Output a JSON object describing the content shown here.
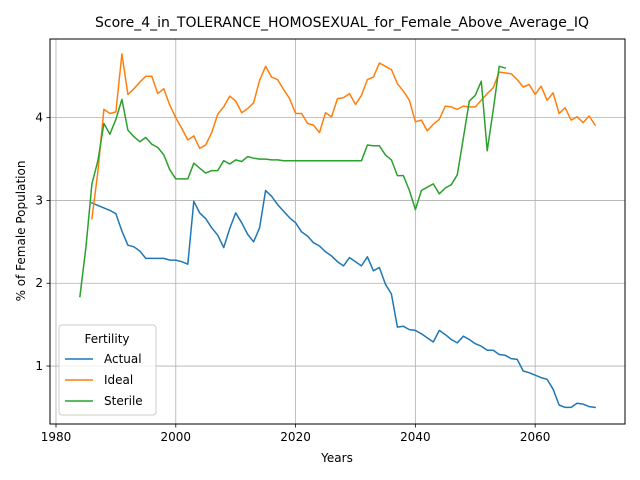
{
  "chart_data": {
    "type": "line",
    "title": "Score_4_in_TOLERANCE_HOMOSEXUAL_for_Female_Above_Average_IQ",
    "xlabel": "Years",
    "ylabel": "% of Female Population",
    "xlim": [
      1979,
      2075
    ],
    "ylim": [
      0.3,
      4.95
    ],
    "xticks": [
      1980,
      2000,
      2020,
      2040,
      2060
    ],
    "yticks": [
      1,
      2,
      3,
      4
    ],
    "grid": true,
    "legend": {
      "title": "Fertility",
      "placement": "lower-left"
    },
    "series": [
      {
        "name": "Actual",
        "color": "#1f77b4",
        "x": [
          1986,
          1987,
          1988,
          1989,
          1990,
          1991,
          1992,
          1993,
          1994,
          1995,
          1996,
          1997,
          1998,
          1999,
          2000,
          2001,
          2002,
          2003,
          2004,
          2005,
          2006,
          2007,
          2008,
          2009,
          2010,
          2011,
          2012,
          2013,
          2014,
          2015,
          2016,
          2017,
          2018,
          2019,
          2020,
          2021,
          2022,
          2023,
          2024,
          2025,
          2026,
          2027,
          2028,
          2029,
          2030,
          2031,
          2032,
          2033,
          2034,
          2035,
          2036,
          2037,
          2038,
          2039,
          2040,
          2041,
          2042,
          2043,
          2044,
          2045,
          2046,
          2047,
          2048,
          2049,
          2050,
          2051,
          2052,
          2053,
          2054,
          2055,
          2056,
          2057,
          2058,
          2059,
          2060,
          2061,
          2062,
          2063,
          2064,
          2065,
          2066,
          2067,
          2068,
          2069,
          2070
        ],
        "values": [
          2.97,
          2.94,
          2.91,
          2.88,
          2.84,
          2.63,
          2.46,
          2.44,
          2.39,
          2.3,
          2.3,
          2.3,
          2.3,
          2.28,
          2.28,
          2.26,
          2.23,
          2.99,
          2.85,
          2.78,
          2.67,
          2.58,
          2.43,
          2.66,
          2.85,
          2.73,
          2.59,
          2.5,
          2.67,
          3.12,
          3.05,
          2.95,
          2.87,
          2.79,
          2.73,
          2.62,
          2.57,
          2.49,
          2.45,
          2.38,
          2.33,
          2.26,
          2.21,
          2.31,
          2.26,
          2.21,
          2.32,
          2.15,
          2.19,
          1.99,
          1.87,
          1.47,
          1.48,
          1.44,
          1.43,
          1.39,
          1.34,
          1.29,
          1.43,
          1.38,
          1.32,
          1.28,
          1.36,
          1.32,
          1.27,
          1.24,
          1.19,
          1.19,
          1.14,
          1.13,
          1.09,
          1.08,
          0.94,
          0.92,
          0.89,
          0.86,
          0.84,
          0.72,
          0.53,
          0.5,
          0.5,
          0.55,
          0.54,
          0.51,
          0.5
        ]
      },
      {
        "name": "Ideal",
        "color": "#ff7f0e",
        "x": [
          1986,
          1987,
          1988,
          1989,
          1990,
          1991,
          1992,
          1993,
          1994,
          1995,
          1996,
          1997,
          1998,
          1999,
          2000,
          2001,
          2002,
          2003,
          2004,
          2005,
          2006,
          2007,
          2008,
          2009,
          2010,
          2011,
          2012,
          2013,
          2014,
          2015,
          2016,
          2017,
          2018,
          2019,
          2020,
          2021,
          2022,
          2023,
          2024,
          2025,
          2026,
          2027,
          2028,
          2029,
          2030,
          2031,
          2032,
          2033,
          2034,
          2035,
          2036,
          2037,
          2038,
          2039,
          2040,
          2041,
          2042,
          2043,
          2044,
          2045,
          2046,
          2047,
          2048,
          2049,
          2050,
          2051,
          2052,
          2053,
          2054,
          2055,
          2056,
          2057,
          2058,
          2059,
          2060,
          2061,
          2062,
          2063,
          2064,
          2065,
          2066,
          2067,
          2068,
          2069,
          2070
        ],
        "values": [
          2.78,
          3.35,
          4.1,
          4.05,
          4.07,
          4.77,
          4.28,
          4.35,
          4.43,
          4.5,
          4.5,
          4.29,
          4.35,
          4.15,
          4.0,
          3.87,
          3.73,
          3.78,
          3.63,
          3.67,
          3.82,
          4.04,
          4.13,
          4.26,
          4.2,
          4.06,
          4.11,
          4.18,
          4.45,
          4.62,
          4.49,
          4.46,
          4.34,
          4.23,
          4.05,
          4.05,
          3.93,
          3.91,
          3.82,
          4.06,
          4.01,
          4.23,
          4.24,
          4.29,
          4.16,
          4.27,
          4.46,
          4.49,
          4.66,
          4.62,
          4.58,
          4.41,
          4.32,
          4.21,
          3.95,
          3.97,
          3.84,
          3.92,
          3.98,
          4.14,
          4.13,
          4.1,
          4.14,
          4.13,
          4.13,
          4.21,
          4.29,
          4.36,
          4.55,
          4.54,
          4.53,
          4.46,
          4.37,
          4.4,
          4.28,
          4.38,
          4.21,
          4.3,
          4.05,
          4.12,
          3.97,
          4.01,
          3.94,
          4.02,
          3.91
        ]
      },
      {
        "name": "Sterile",
        "color": "#2ca02c",
        "x": [
          1984,
          1985,
          1986,
          1987,
          1988,
          1989,
          1990,
          1991,
          1992,
          1993,
          1994,
          1995,
          1996,
          1997,
          1998,
          1999,
          2000,
          2001,
          2002,
          2003,
          2004,
          2005,
          2006,
          2007,
          2008,
          2009,
          2010,
          2011,
          2012,
          2013,
          2014,
          2015,
          2016,
          2017,
          2018,
          2019,
          2020,
          2021,
          2022,
          2023,
          2024,
          2025,
          2026,
          2027,
          2028,
          2029,
          2030,
          2031,
          2032,
          2033,
          2034,
          2035,
          2036,
          2037,
          2038,
          2039,
          2040,
          2041,
          2042,
          2043,
          2044,
          2045,
          2046,
          2047,
          2048,
          2049,
          2050,
          2051,
          2052,
          2053,
          2054,
          2055
        ],
        "values": [
          1.84,
          2.43,
          3.2,
          3.48,
          3.93,
          3.8,
          3.98,
          4.22,
          3.85,
          3.77,
          3.71,
          3.76,
          3.68,
          3.64,
          3.55,
          3.37,
          3.26,
          3.26,
          3.26,
          3.45,
          3.39,
          3.33,
          3.36,
          3.36,
          3.48,
          3.44,
          3.49,
          3.47,
          3.53,
          3.51,
          3.5,
          3.5,
          3.49,
          3.49,
          3.48,
          3.48,
          3.48,
          3.48,
          3.48,
          3.48,
          3.48,
          3.48,
          3.48,
          3.48,
          3.48,
          3.48,
          3.48,
          3.48,
          3.67,
          3.66,
          3.66,
          3.55,
          3.49,
          3.3,
          3.3,
          3.12,
          2.89,
          3.12,
          3.16,
          3.2,
          3.08,
          3.15,
          3.19,
          3.31,
          3.75,
          4.2,
          4.27,
          4.44,
          3.6,
          4.09,
          4.62,
          4.6
        ]
      }
    ]
  }
}
